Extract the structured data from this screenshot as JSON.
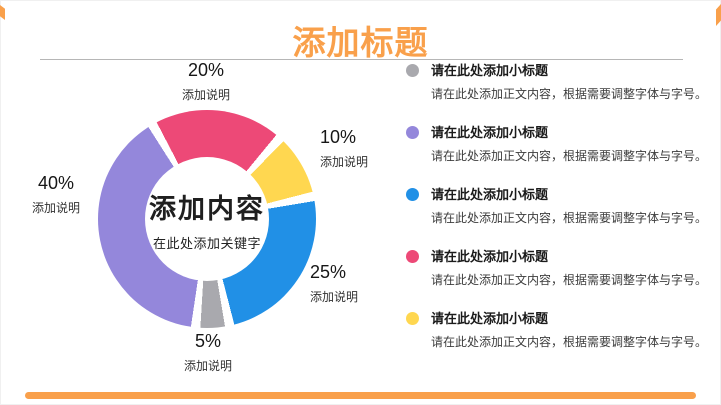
{
  "slide": {
    "title": "添加标题",
    "accent_color": "#F9A04B"
  },
  "chart_data": {
    "type": "pie",
    "donut": true,
    "start_angle": -30,
    "gap_deg": 5,
    "center_title": "添加内容",
    "center_subtitle": "在此处添加关键字",
    "segments": [
      {
        "label": "20%",
        "value": 20,
        "note": "添加说明",
        "color": "#ED4977"
      },
      {
        "label": "10%",
        "value": 10,
        "note": "添加说明",
        "color": "#FFD750"
      },
      {
        "label": "25%",
        "value": 25,
        "note": "添加说明",
        "color": "#2190E6"
      },
      {
        "label": "5%",
        "value": 5,
        "note": "添加说明",
        "color": "#A9A9AE"
      },
      {
        "label": "40%",
        "value": 40,
        "note": "添加说明",
        "color": "#9487DB"
      }
    ]
  },
  "list": {
    "items": [
      {
        "title": "请在此处添加小标题",
        "body": "请在此处添加正文内容，根据需要调整字体与字号。",
        "color": "#A9A9AE"
      },
      {
        "title": "请在此处添加小标题",
        "body": "请在此处添加正文内容，根据需要调整字体与字号。",
        "color": "#9487DB"
      },
      {
        "title": "请在此处添加小标题",
        "body": "请在此处添加正文内容，根据需要调整字体与字号。",
        "color": "#2190E6"
      },
      {
        "title": "请在此处添加小标题",
        "body": "请在此处添加正文内容，根据需要调整字体与字号。",
        "color": "#ED4977"
      },
      {
        "title": "请在此处添加小标题",
        "body": "请在此处添加正文内容，根据需要调整字体与字号。",
        "color": "#FFD750"
      }
    ]
  }
}
